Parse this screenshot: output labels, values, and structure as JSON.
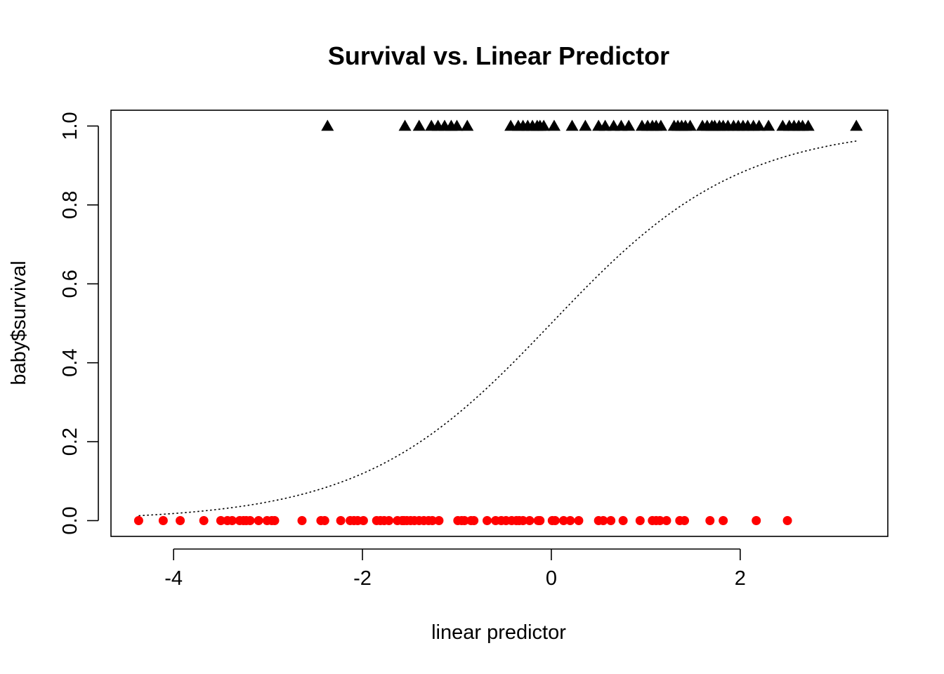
{
  "chart_data": {
    "type": "scatter",
    "title": "Survival vs. Linear Predictor",
    "xlabel": "linear predictor",
    "ylabel": "baby$survival",
    "xlim": [
      -4.663,
      3.563
    ],
    "ylim": [
      -0.04,
      1.04
    ],
    "x_ticks": [
      -4,
      -2,
      0,
      2
    ],
    "x_tick_labels": [
      "-4",
      "-2",
      "0",
      "2"
    ],
    "y_ticks": [
      0.0,
      0.2,
      0.4,
      0.6,
      0.8,
      1.0
    ],
    "y_tick_labels": [
      "0.0",
      "0.2",
      "0.4",
      "0.6",
      "0.8",
      "1.0"
    ],
    "grid": false,
    "legend": "none",
    "series": [
      {
        "marker": "triangle",
        "color": "#000000",
        "y": 1,
        "x": [
          -2.37,
          -1.55,
          -1.4,
          -1.27,
          -1.2,
          -1.13,
          -1.06,
          -1.0,
          -0.89,
          -0.43,
          -0.35,
          -0.3,
          -0.25,
          -0.2,
          -0.15,
          -0.12,
          -0.08,
          0.03,
          0.22,
          0.36,
          0.5,
          0.57,
          0.66,
          0.74,
          0.82,
          0.96,
          1.02,
          1.07,
          1.11,
          1.16,
          1.3,
          1.34,
          1.38,
          1.42,
          1.47,
          1.6,
          1.65,
          1.7,
          1.73,
          1.78,
          1.82,
          1.87,
          1.93,
          1.98,
          2.03,
          2.08,
          2.14,
          2.2,
          2.3,
          2.45,
          2.52,
          2.57,
          2.62,
          2.66,
          2.72,
          3.23
        ]
      },
      {
        "marker": "circle",
        "color": "#ff0000",
        "y": 0,
        "x": [
          -4.37,
          -4.11,
          -3.93,
          -3.68,
          -3.5,
          -3.43,
          -3.38,
          -3.3,
          -3.26,
          -3.23,
          -3.19,
          -3.1,
          -3.01,
          -2.96,
          -2.93,
          -2.64,
          -2.44,
          -2.4,
          -2.23,
          -2.13,
          -2.09,
          -2.05,
          -1.99,
          -1.85,
          -1.81,
          -1.77,
          -1.72,
          -1.63,
          -1.58,
          -1.56,
          -1.53,
          -1.49,
          -1.45,
          -1.4,
          -1.35,
          -1.3,
          -1.26,
          -1.19,
          -0.99,
          -0.95,
          -0.92,
          -0.85,
          -0.82,
          -0.68,
          -0.59,
          -0.53,
          -0.48,
          -0.42,
          -0.37,
          -0.34,
          -0.3,
          -0.23,
          -0.14,
          -0.12,
          0.01,
          0.04,
          0.13,
          0.2,
          0.29,
          0.5,
          0.55,
          0.63,
          0.76,
          0.94,
          1.07,
          1.11,
          1.15,
          1.22,
          1.36,
          1.41,
          1.68,
          1.82,
          2.17,
          2.5
        ]
      }
    ],
    "fitted_curve": {
      "style": "dotted",
      "color": "#000000",
      "function": "logistic",
      "x_range": [
        -4.37,
        3.23
      ]
    }
  }
}
